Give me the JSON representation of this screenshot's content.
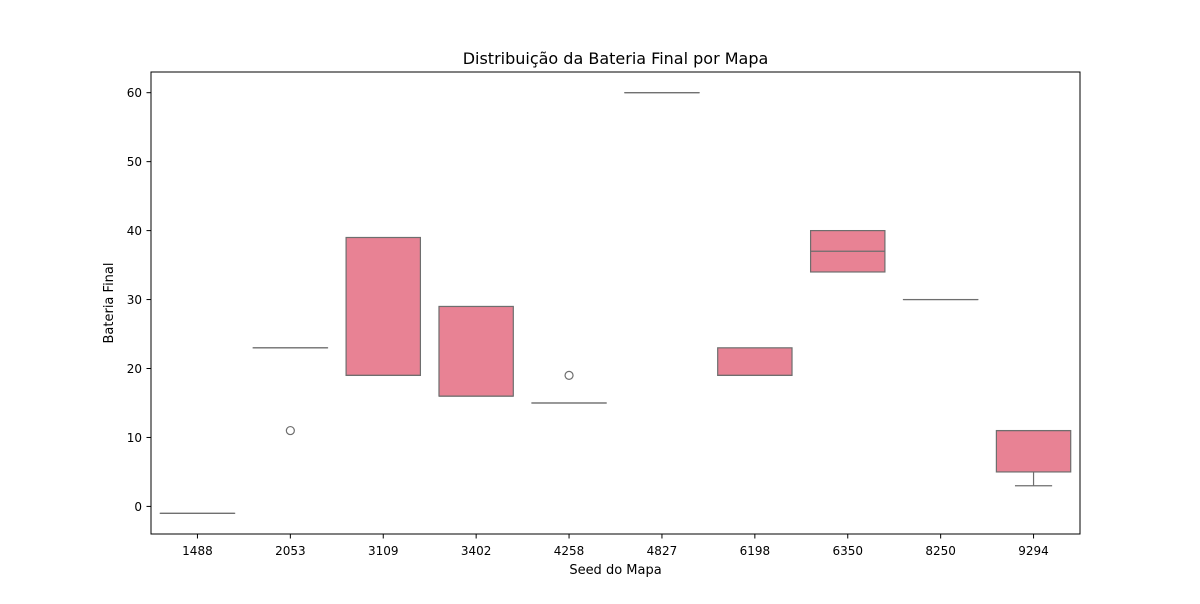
{
  "chart_data": {
    "type": "box",
    "title": "Distribuição da Bateria Final por Mapa",
    "xlabel": "Seed do Mapa",
    "ylabel": "Bateria Final",
    "ylim": [
      -4,
      63
    ],
    "yticks": [
      0,
      10,
      20,
      30,
      40,
      50,
      60
    ],
    "categories": [
      "1488",
      "2053",
      "3109",
      "3402",
      "4258",
      "4827",
      "6198",
      "6350",
      "8250",
      "9294"
    ],
    "boxes": [
      {
        "category": "1488",
        "whisker_low": -1,
        "q1": -1,
        "median": -1,
        "q3": -1,
        "whisker_high": -1,
        "outliers": []
      },
      {
        "category": "2053",
        "whisker_low": 23,
        "q1": 23,
        "median": 23,
        "q3": 23,
        "whisker_high": 23,
        "outliers": [
          11
        ]
      },
      {
        "category": "3109",
        "whisker_low": 19,
        "q1": 19,
        "median": 19,
        "q3": 39,
        "whisker_high": 39,
        "outliers": []
      },
      {
        "category": "3402",
        "whisker_low": 16,
        "q1": 16,
        "median": 16,
        "q3": 29,
        "whisker_high": 29,
        "outliers": []
      },
      {
        "category": "4258",
        "whisker_low": 15,
        "q1": 15,
        "median": 15,
        "q3": 15,
        "whisker_high": 15,
        "outliers": [
          19
        ]
      },
      {
        "category": "4827",
        "whisker_low": 60,
        "q1": 60,
        "median": 60,
        "q3": 60,
        "whisker_high": 60,
        "outliers": []
      },
      {
        "category": "6198",
        "whisker_low": 19,
        "q1": 19,
        "median": 19,
        "q3": 23,
        "whisker_high": 23,
        "outliers": []
      },
      {
        "category": "6350",
        "whisker_low": 34,
        "q1": 34,
        "median": 37,
        "q3": 40,
        "whisker_high": 40,
        "outliers": []
      },
      {
        "category": "8250",
        "whisker_low": 30,
        "q1": 30,
        "median": 30,
        "q3": 30,
        "whisker_high": 30,
        "outliers": []
      },
      {
        "category": "9294",
        "whisker_low": 3,
        "q1": 5,
        "median": 11,
        "q3": 11,
        "whisker_high": 11,
        "outliers": []
      }
    ],
    "grid": false,
    "colors": {
      "box_fill": "#e88294",
      "line": "#6e6e6e",
      "axis": "#000000"
    }
  }
}
